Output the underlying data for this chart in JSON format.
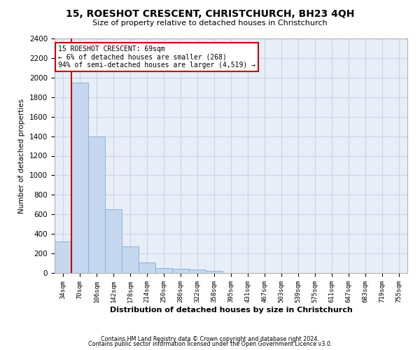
{
  "title": "15, ROESHOT CRESCENT, CHRISTCHURCH, BH23 4QH",
  "subtitle": "Size of property relative to detached houses in Christchurch",
  "xlabel": "Distribution of detached houses by size in Christchurch",
  "ylabel": "Number of detached properties",
  "bar_color": "#c5d8f0",
  "bar_edge_color": "#7aadd4",
  "background_color": "#ffffff",
  "plot_bg_color": "#e8eef8",
  "grid_color": "#c8d4e8",
  "annotation_box_text": "15 ROESHOT CRESCENT: 69sqm\n← 6% of detached houses are smaller (268)\n94% of semi-detached houses are larger (4,519) →",
  "annotation_box_color": "#cc0000",
  "vline_color": "#cc0000",
  "categories": [
    "34sqm",
    "70sqm",
    "106sqm",
    "142sqm",
    "178sqm",
    "214sqm",
    "250sqm",
    "286sqm",
    "322sqm",
    "358sqm",
    "395sqm",
    "431sqm",
    "467sqm",
    "503sqm",
    "539sqm",
    "575sqm",
    "611sqm",
    "647sqm",
    "683sqm",
    "719sqm",
    "755sqm"
  ],
  "bar_heights": [
    325,
    1950,
    1400,
    650,
    275,
    105,
    50,
    40,
    35,
    20,
    0,
    0,
    0,
    0,
    0,
    0,
    0,
    0,
    0,
    0,
    0
  ],
  "ylim": [
    0,
    2400
  ],
  "yticks": [
    0,
    200,
    400,
    600,
    800,
    1000,
    1200,
    1400,
    1600,
    1800,
    2000,
    2200,
    2400
  ],
  "footnote1": "Contains HM Land Registry data © Crown copyright and database right 2024.",
  "footnote2": "Contains public sector information licensed under the Open Government Licence v3.0."
}
